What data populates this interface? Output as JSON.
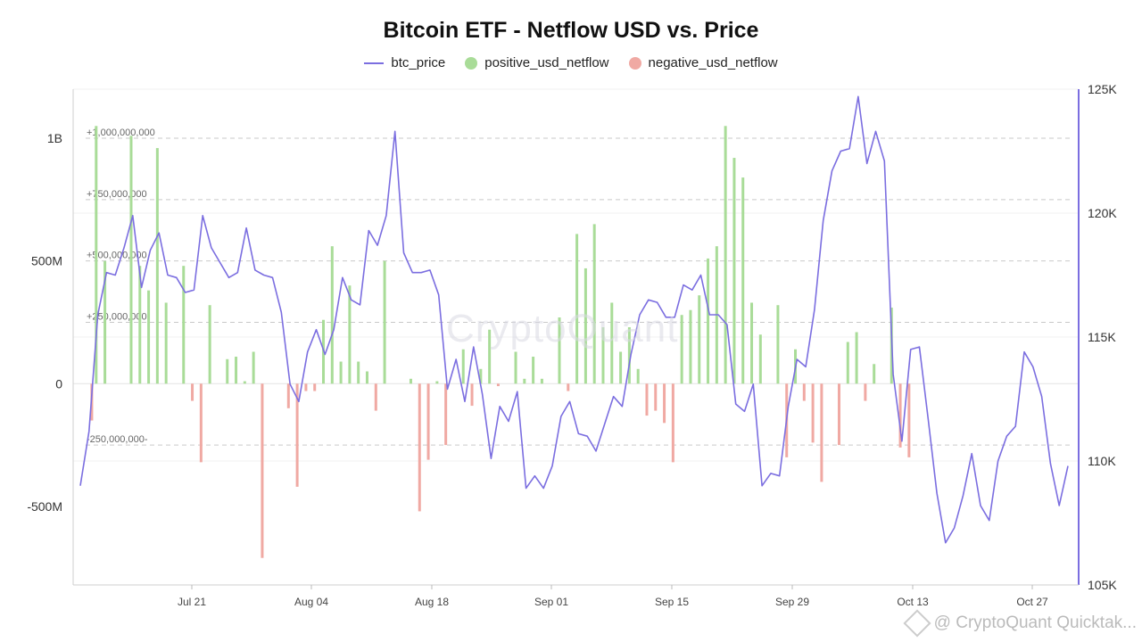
{
  "colors": {
    "price": "#7b6ee0",
    "positive": "#a9dc98",
    "negative": "#f0a9a3",
    "axis_right": "#7b6ee0",
    "grid": "#c9c9c9"
  },
  "watermark": "CryptoQuant",
  "footer": {
    "text": "@ CryptoQuant Quicktak...",
    "icon": "cryptoquant-logo-icon"
  },
  "chart_data": {
    "type": "bar+line",
    "title": "Bitcoin ETF - Netflow USD vs. Price",
    "legend": [
      "btc_price",
      "positive_usd_netflow",
      "negative_usd_netflow"
    ],
    "legend_placement": "top-center",
    "y_left": {
      "ticks": [
        1000000000,
        500000000,
        0,
        -500000000
      ],
      "tick_labels": [
        "1B",
        "500M",
        "0",
        "-500M"
      ],
      "range": [
        -820000000,
        1200000000
      ]
    },
    "y_right": {
      "ticks": [
        125000,
        120000,
        115000,
        110000,
        105000
      ],
      "tick_labels": [
        "125K",
        "120K",
        "115K",
        "110K",
        "105K"
      ],
      "range": [
        105000,
        125000
      ]
    },
    "reference_lines": [
      {
        "value": 1000000000,
        "label": "+1,000,000,000"
      },
      {
        "value": 750000000,
        "label": "+750,000,000"
      },
      {
        "value": 500000000,
        "label": "+500,000,000"
      },
      {
        "value": 250000000,
        "label": "+250,000,000"
      },
      {
        "value": -250000000,
        "label": "-250,000,000-"
      }
    ],
    "x_ticks": [
      "Jul 21",
      "Aug 04",
      "Aug 18",
      "Sep 01",
      "Sep 15",
      "Sep 29",
      "Oct 13",
      "Oct 27"
    ],
    "netflow": [
      [
        0.5,
        -150000000
      ],
      [
        1,
        1050000000
      ],
      [
        2,
        500000000
      ],
      [
        5,
        1010000000
      ],
      [
        6,
        480000000
      ],
      [
        7,
        380000000
      ],
      [
        8,
        960000000
      ],
      [
        9,
        330000000
      ],
      [
        11,
        480000000
      ],
      [
        12,
        -70000000
      ],
      [
        13,
        -320000000
      ],
      [
        14,
        320000000
      ],
      [
        16,
        100000000
      ],
      [
        17,
        110000000
      ],
      [
        18,
        10000000
      ],
      [
        19,
        130000000
      ],
      [
        20,
        -710000000
      ],
      [
        23,
        -100000000
      ],
      [
        24,
        -420000000
      ],
      [
        25,
        -30000000
      ],
      [
        26,
        -30000000
      ],
      [
        27,
        260000000
      ],
      [
        28,
        560000000
      ],
      [
        29,
        90000000
      ],
      [
        30,
        400000000
      ],
      [
        31,
        90000000
      ],
      [
        32,
        50000000
      ],
      [
        33,
        -110000000
      ],
      [
        34,
        500000000
      ],
      [
        37,
        20000000
      ],
      [
        38,
        -520000000
      ],
      [
        39,
        -310000000
      ],
      [
        40,
        10000000
      ],
      [
        41,
        -250000000
      ],
      [
        43,
        140000000
      ],
      [
        44,
        -90000000
      ],
      [
        45,
        60000000
      ],
      [
        46,
        220000000
      ],
      [
        47,
        -10000000
      ],
      [
        49,
        130000000
      ],
      [
        50,
        20000000
      ],
      [
        51,
        110000000
      ],
      [
        52,
        20000000
      ],
      [
        54,
        270000000
      ],
      [
        55,
        -30000000
      ],
      [
        56,
        610000000
      ],
      [
        57,
        470000000
      ],
      [
        58,
        650000000
      ],
      [
        59,
        230000000
      ],
      [
        60,
        330000000
      ],
      [
        61,
        130000000
      ],
      [
        62,
        230000000
      ],
      [
        63,
        60000000
      ],
      [
        64,
        -130000000
      ],
      [
        65,
        -110000000
      ],
      [
        66,
        -160000000
      ],
      [
        67,
        -320000000
      ],
      [
        68,
        280000000
      ],
      [
        69,
        300000000
      ],
      [
        70,
        360000000
      ],
      [
        71,
        510000000
      ],
      [
        72,
        560000000
      ],
      [
        73,
        1050000000
      ],
      [
        74,
        920000000
      ],
      [
        75,
        840000000
      ],
      [
        76,
        330000000
      ],
      [
        77,
        200000000
      ],
      [
        79,
        320000000
      ],
      [
        80,
        -300000000
      ],
      [
        81,
        140000000
      ],
      [
        82,
        -70000000
      ],
      [
        83,
        -240000000
      ],
      [
        84,
        -400000000
      ],
      [
        86,
        -250000000
      ],
      [
        87,
        170000000
      ],
      [
        88,
        210000000
      ],
      [
        89,
        -70000000
      ],
      [
        90,
        80000000
      ],
      [
        92,
        310000000
      ],
      [
        93,
        -260000000
      ],
      [
        94,
        -300000000
      ]
    ],
    "btc_price": [
      [
        0,
        109000
      ],
      [
        1,
        111200
      ],
      [
        2,
        115900
      ],
      [
        3,
        117600
      ],
      [
        4,
        117500
      ],
      [
        5,
        118600
      ],
      [
        6,
        119900
      ],
      [
        7,
        117000
      ],
      [
        8,
        118500
      ],
      [
        9,
        119200
      ],
      [
        10,
        117500
      ],
      [
        11,
        117400
      ],
      [
        12,
        116800
      ],
      [
        13,
        116900
      ],
      [
        14,
        119900
      ],
      [
        15,
        118600
      ],
      [
        16,
        118000
      ],
      [
        17,
        117400
      ],
      [
        18,
        117600
      ],
      [
        19,
        119400
      ],
      [
        20,
        117700
      ],
      [
        21,
        117500
      ],
      [
        22,
        117400
      ],
      [
        23,
        116000
      ],
      [
        24,
        113100
      ],
      [
        25,
        112400
      ],
      [
        26,
        114400
      ],
      [
        27,
        115300
      ],
      [
        28,
        114300
      ],
      [
        29,
        115300
      ],
      [
        30,
        117400
      ],
      [
        31,
        116500
      ],
      [
        32,
        116300
      ],
      [
        33,
        119300
      ],
      [
        34,
        118700
      ],
      [
        35,
        119900
      ],
      [
        36,
        123300
      ],
      [
        37,
        118400
      ],
      [
        38,
        117600
      ],
      [
        39,
        117600
      ],
      [
        40,
        117700
      ],
      [
        41,
        116700
      ],
      [
        42,
        112900
      ],
      [
        43,
        114100
      ],
      [
        44,
        112400
      ],
      [
        45,
        114600
      ],
      [
        46,
        112700
      ],
      [
        47,
        110100
      ],
      [
        48,
        112200
      ],
      [
        49,
        111600
      ],
      [
        50,
        112800
      ],
      [
        51,
        108900
      ],
      [
        52,
        109400
      ],
      [
        53,
        108900
      ],
      [
        54,
        109800
      ],
      [
        55,
        111800
      ],
      [
        56,
        112400
      ],
      [
        57,
        111100
      ],
      [
        58,
        111000
      ],
      [
        59,
        110400
      ],
      [
        60,
        111500
      ],
      [
        61,
        112600
      ],
      [
        62,
        112200
      ],
      [
        63,
        114300
      ],
      [
        64,
        115900
      ],
      [
        65,
        116500
      ],
      [
        66,
        116400
      ],
      [
        67,
        115800
      ],
      [
        68,
        115800
      ],
      [
        69,
        117100
      ],
      [
        70,
        116900
      ],
      [
        71,
        117500
      ],
      [
        72,
        115900
      ],
      [
        73,
        115900
      ],
      [
        74,
        115500
      ],
      [
        75,
        112300
      ],
      [
        76,
        112000
      ],
      [
        77,
        113100
      ],
      [
        78,
        109000
      ],
      [
        79,
        109500
      ],
      [
        80,
        109400
      ],
      [
        81,
        112200
      ],
      [
        82,
        114100
      ],
      [
        83,
        113800
      ],
      [
        84,
        116100
      ],
      [
        85,
        119700
      ],
      [
        86,
        121700
      ],
      [
        87,
        122500
      ],
      [
        88,
        122600
      ],
      [
        89,
        124700
      ],
      [
        90,
        122000
      ],
      [
        91,
        123300
      ],
      [
        92,
        122100
      ],
      [
        93,
        113500
      ],
      [
        94,
        110800
      ],
      [
        95,
        114500
      ],
      [
        96,
        114600
      ],
      [
        97,
        111700
      ],
      [
        98,
        108700
      ],
      [
        99,
        106700
      ],
      [
        100,
        107300
      ],
      [
        101,
        108600
      ],
      [
        102,
        110300
      ],
      [
        103,
        108200
      ],
      [
        104,
        107600
      ],
      [
        105,
        110000
      ],
      [
        106,
        111000
      ],
      [
        107,
        111400
      ],
      [
        108,
        114400
      ],
      [
        109,
        113800
      ],
      [
        110,
        112600
      ],
      [
        111,
        109900
      ],
      [
        112,
        108200
      ],
      [
        113,
        109800
      ]
    ]
  }
}
